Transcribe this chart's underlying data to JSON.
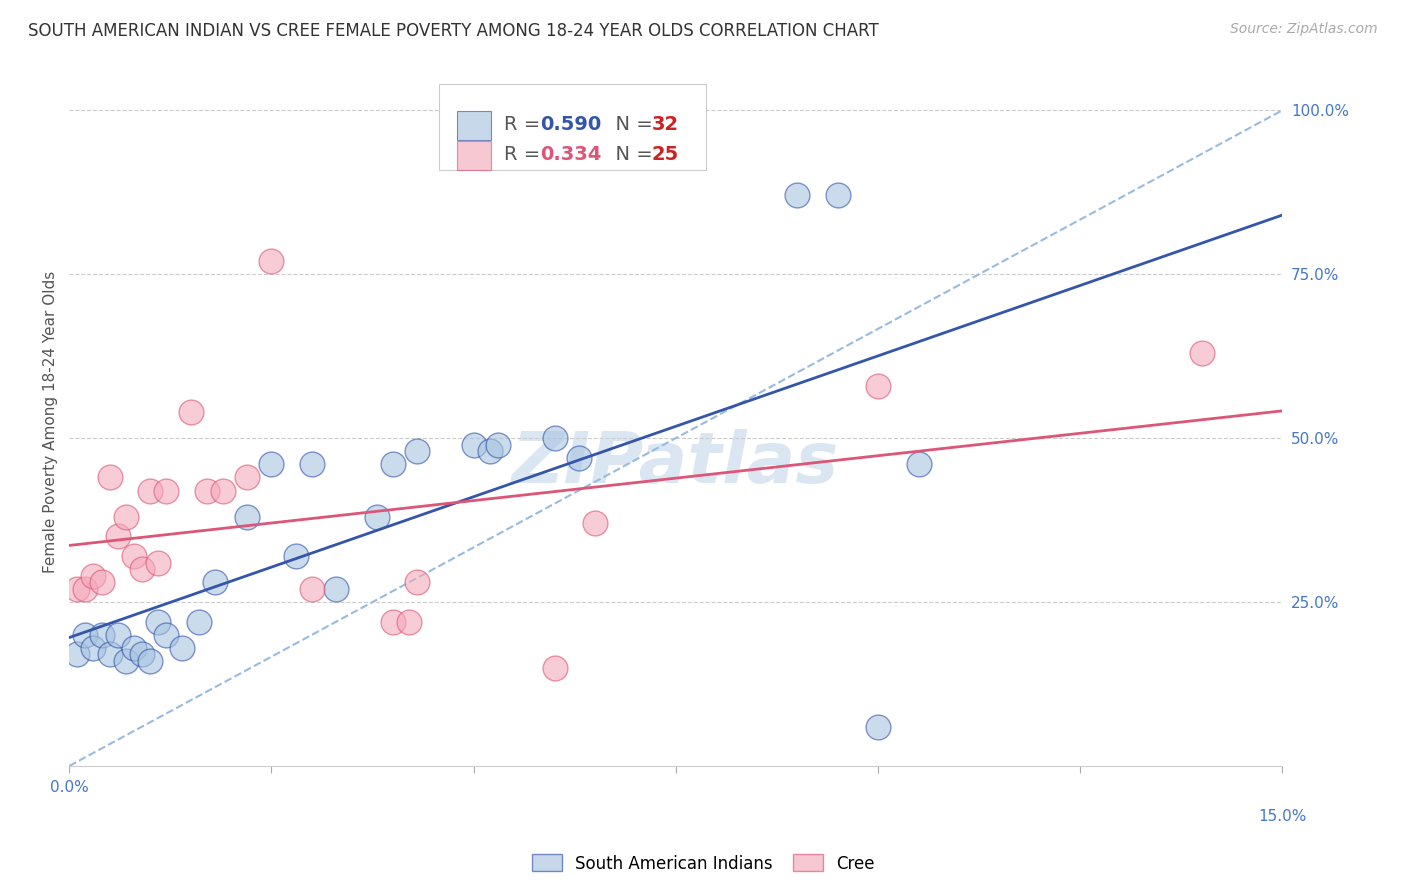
{
  "title": "SOUTH AMERICAN INDIAN VS CREE FEMALE POVERTY AMONG 18-24 YEAR OLDS CORRELATION CHART",
  "source": "Source: ZipAtlas.com",
  "ylabel": "Female Poverty Among 18-24 Year Olds",
  "xlim": [
    0.0,
    0.15
  ],
  "ylim": [
    0.0,
    1.05
  ],
  "legend1_R": "0.590",
  "legend1_N": "32",
  "legend2_R": "0.334",
  "legend2_N": "25",
  "blue_color": "#A8C4E0",
  "pink_color": "#F4AABB",
  "line_blue": "#3355AA",
  "line_pink": "#DD5577",
  "dashed_line_color": "#99BBDD",
  "watermark": "ZIPatlas",
  "south_american_x": [
    0.001,
    0.002,
    0.003,
    0.004,
    0.005,
    0.006,
    0.007,
    0.008,
    0.009,
    0.01,
    0.011,
    0.012,
    0.014,
    0.016,
    0.018,
    0.022,
    0.025,
    0.028,
    0.03,
    0.033,
    0.038,
    0.04,
    0.043,
    0.05,
    0.052,
    0.053,
    0.06,
    0.063,
    0.09,
    0.095,
    0.1,
    0.105
  ],
  "south_american_y": [
    0.17,
    0.2,
    0.18,
    0.2,
    0.17,
    0.2,
    0.16,
    0.18,
    0.17,
    0.16,
    0.22,
    0.2,
    0.18,
    0.22,
    0.28,
    0.38,
    0.46,
    0.32,
    0.46,
    0.27,
    0.38,
    0.46,
    0.48,
    0.49,
    0.48,
    0.49,
    0.5,
    0.47,
    0.87,
    0.87,
    0.06,
    0.46
  ],
  "cree_x": [
    0.001,
    0.002,
    0.003,
    0.004,
    0.005,
    0.006,
    0.007,
    0.008,
    0.009,
    0.01,
    0.011,
    0.012,
    0.015,
    0.017,
    0.019,
    0.022,
    0.025,
    0.03,
    0.04,
    0.042,
    0.043,
    0.06,
    0.065,
    0.1,
    0.14
  ],
  "cree_y": [
    0.27,
    0.27,
    0.29,
    0.28,
    0.44,
    0.35,
    0.38,
    0.32,
    0.3,
    0.42,
    0.31,
    0.42,
    0.54,
    0.42,
    0.42,
    0.44,
    0.77,
    0.27,
    0.22,
    0.22,
    0.28,
    0.15,
    0.37,
    0.58,
    0.63
  ],
  "title_fontsize": 12,
  "source_fontsize": 10,
  "axis_label_fontsize": 11,
  "tick_fontsize": 11,
  "legend_fontsize": 14,
  "watermark_fontsize": 52,
  "background_color": "#FFFFFF",
  "grid_color": "#CCCCCC",
  "blue_axis_color": "#4477CC"
}
